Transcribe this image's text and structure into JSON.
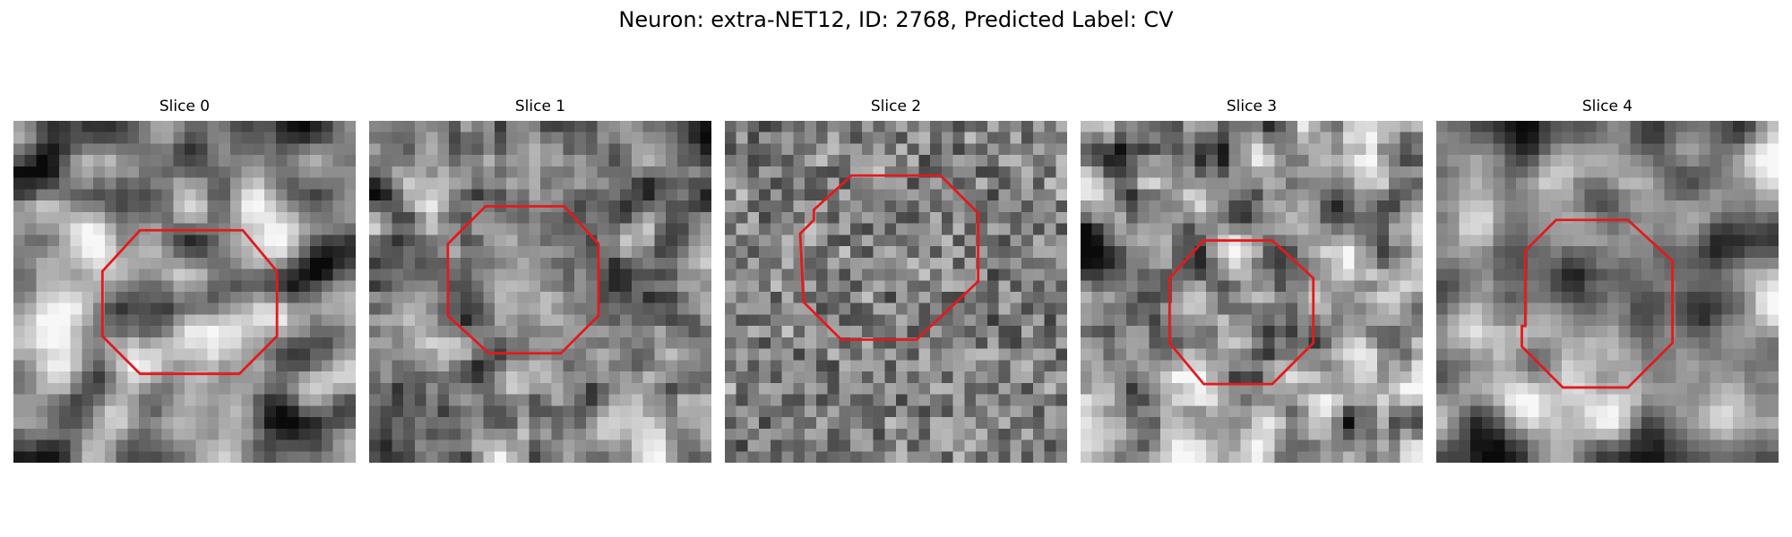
{
  "figure": {
    "title": "Neuron: extra-NET12, ID: 2768, Predicted Label: CV"
  },
  "panels": [
    {
      "title": "Slice 0",
      "seed": 11,
      "blur": 2,
      "noise": 0.35,
      "contrast": 1.15,
      "contour": [
        [
          0.37,
          0.32
        ],
        [
          0.67,
          0.32
        ],
        [
          0.77,
          0.44
        ],
        [
          0.77,
          0.63
        ],
        [
          0.66,
          0.74
        ],
        [
          0.37,
          0.74
        ],
        [
          0.26,
          0.63
        ],
        [
          0.26,
          0.44
        ]
      ]
    },
    {
      "title": "Slice 1",
      "seed": 23,
      "blur": 1,
      "noise": 0.4,
      "contrast": 1.0,
      "contour": [
        [
          0.34,
          0.25
        ],
        [
          0.57,
          0.25
        ],
        [
          0.67,
          0.36
        ],
        [
          0.67,
          0.57
        ],
        [
          0.56,
          0.68
        ],
        [
          0.35,
          0.68
        ],
        [
          0.23,
          0.57
        ],
        [
          0.23,
          0.36
        ]
      ]
    },
    {
      "title": "Slice 2",
      "seed": 37,
      "blur": 0,
      "noise": 0.9,
      "contrast": 0.45,
      "contour": [
        [
          0.37,
          0.16
        ],
        [
          0.63,
          0.16
        ],
        [
          0.74,
          0.27
        ],
        [
          0.74,
          0.47
        ],
        [
          0.56,
          0.64
        ],
        [
          0.34,
          0.64
        ],
        [
          0.23,
          0.53
        ],
        [
          0.22,
          0.33
        ],
        [
          0.26,
          0.29
        ],
        [
          0.26,
          0.26
        ]
      ]
    },
    {
      "title": "Slice 3",
      "seed": 51,
      "blur": 1,
      "noise": 0.45,
      "contrast": 1.2,
      "contour": [
        [
          0.36,
          0.35
        ],
        [
          0.56,
          0.35
        ],
        [
          0.68,
          0.46
        ],
        [
          0.68,
          0.65
        ],
        [
          0.56,
          0.77
        ],
        [
          0.36,
          0.77
        ],
        [
          0.26,
          0.65
        ],
        [
          0.26,
          0.46
        ]
      ]
    },
    {
      "title": "Slice 4",
      "seed": 67,
      "blur": 2,
      "noise": 0.35,
      "contrast": 1.1,
      "contour": [
        [
          0.35,
          0.29
        ],
        [
          0.56,
          0.29
        ],
        [
          0.69,
          0.41
        ],
        [
          0.69,
          0.65
        ],
        [
          0.56,
          0.78
        ],
        [
          0.37,
          0.78
        ],
        [
          0.25,
          0.66
        ],
        [
          0.25,
          0.6
        ],
        [
          0.26,
          0.6
        ],
        [
          0.26,
          0.38
        ]
      ]
    }
  ],
  "style": {
    "contour_color": "#e31a1c"
  }
}
